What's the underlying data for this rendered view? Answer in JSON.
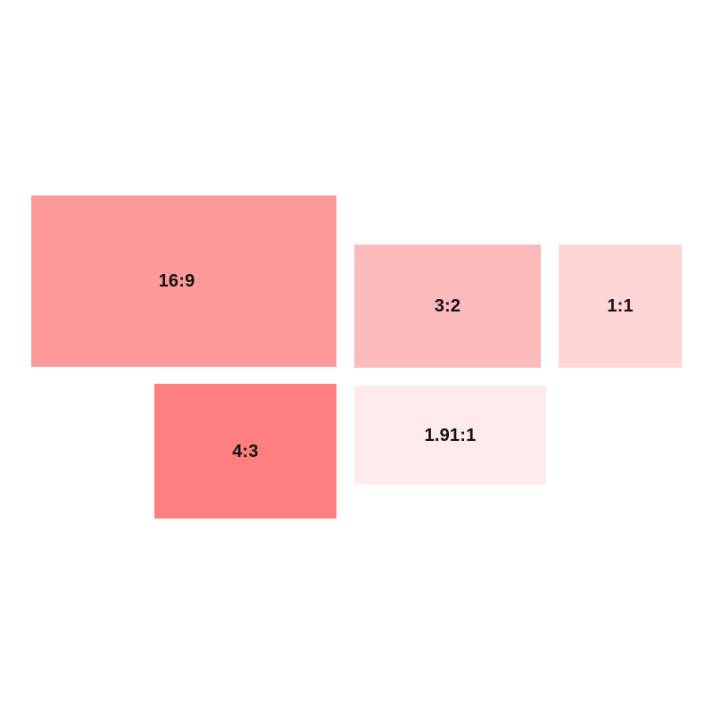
{
  "ratios": [
    {
      "label": "16:9",
      "color": "#FD9999"
    },
    {
      "label": "3:2",
      "color": "#FBBABB"
    },
    {
      "label": "1:1",
      "color": "#FED6D6"
    },
    {
      "label": "4:3",
      "color": "#FE7F7F"
    },
    {
      "label": "1.91:1",
      "color": "#FEEAEB"
    }
  ]
}
